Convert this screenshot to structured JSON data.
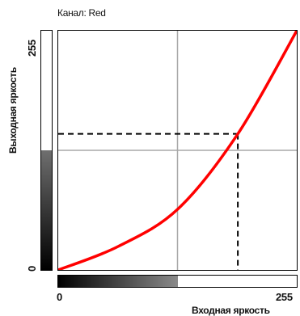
{
  "channel": {
    "label": "Канал: Red"
  },
  "axes": {
    "y_label": "Выходная яркость",
    "x_label": "Входная яркость",
    "y_max": "255",
    "y_min": "0",
    "x_min": "0",
    "x_max": "255"
  },
  "curve": {
    "color": "#ff0000",
    "points": [
      [
        0,
        0
      ],
      [
        64,
        25
      ],
      [
        128,
        65
      ],
      [
        192,
        145
      ],
      [
        255,
        255
      ]
    ]
  },
  "marker": {
    "input": 192,
    "output": 145
  },
  "gradients": {
    "output_fill_fraction": 0.5,
    "input_fill_fraction": 0.5
  }
}
